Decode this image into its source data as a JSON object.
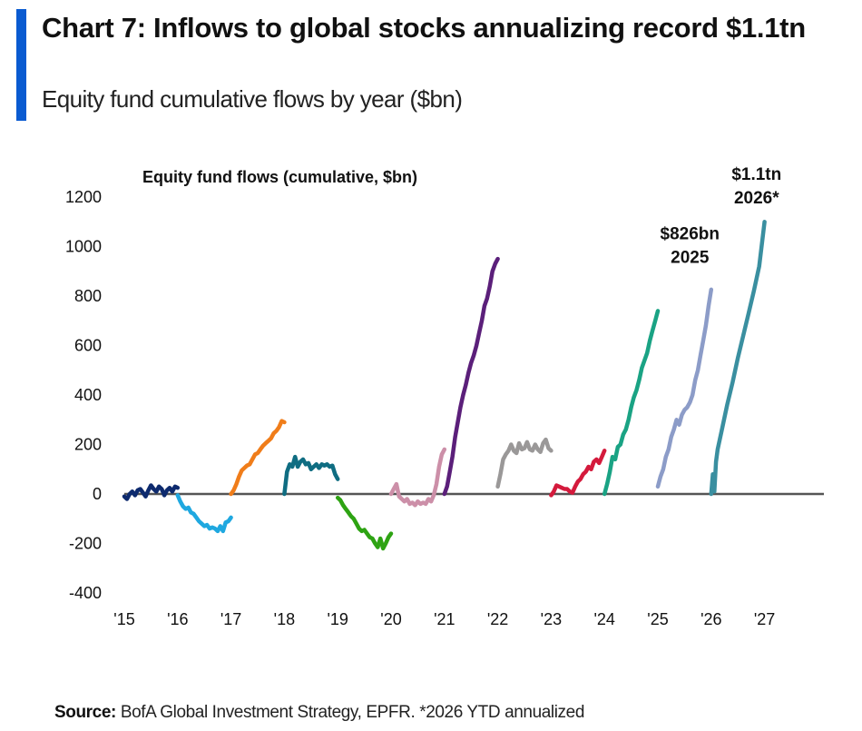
{
  "header": {
    "title": "Chart 7: Inflows to global stocks annualizing record $1.1tn",
    "subtitle": "Equity fund cumulative flows by year ($bn)",
    "accent_color": "#0a5bd1"
  },
  "footer": {
    "source_label": "Source:",
    "source_text": " BofA Global Investment Strategy, EPFR. *2026 YTD annualized"
  },
  "chart_data": {
    "type": "line",
    "title": "Equity fund flows (cumulative, $bn)",
    "xlabel": "",
    "ylabel": "",
    "ylim": [
      -400,
      1200
    ],
    "xlim": [
      2015,
      2027
    ],
    "grid": false,
    "legend": "none",
    "yticks": [
      1200,
      1000,
      800,
      600,
      400,
      200,
      0,
      -200,
      -400
    ],
    "xticks": [
      {
        "value": 2015,
        "label": "'15"
      },
      {
        "value": 2016,
        "label": "'16"
      },
      {
        "value": 2017,
        "label": "'17"
      },
      {
        "value": 2018,
        "label": "'18"
      },
      {
        "value": 2019,
        "label": "'19"
      },
      {
        "value": 2020,
        "label": "'20"
      },
      {
        "value": 2021,
        "label": "'21"
      },
      {
        "value": 2022,
        "label": "'22"
      },
      {
        "value": 2023,
        "label": "'23"
      },
      {
        "value": 2024,
        "label": "'24"
      },
      {
        "value": 2025,
        "label": "'25"
      },
      {
        "value": 2026,
        "label": "'26"
      },
      {
        "value": 2027,
        "label": "'27"
      }
    ],
    "series": [
      {
        "name": "2015",
        "color": "#0d2a6e",
        "x": [
          2015.0,
          2015.05,
          2015.1,
          2015.15,
          2015.2,
          2015.25,
          2015.3,
          2015.35,
          2015.4,
          2015.45,
          2015.5,
          2015.55,
          2015.6,
          2015.65,
          2015.7,
          2015.75,
          2015.8,
          2015.85,
          2015.9,
          2015.95,
          2016.0
        ],
        "y": [
          -10,
          -20,
          0,
          10,
          -5,
          15,
          20,
          5,
          -10,
          15,
          35,
          20,
          10,
          30,
          20,
          -5,
          15,
          25,
          10,
          30,
          25
        ]
      },
      {
        "name": "2016",
        "color": "#1fa8e0",
        "x": [
          2016.0,
          2016.05,
          2016.1,
          2016.15,
          2016.2,
          2016.25,
          2016.3,
          2016.35,
          2016.4,
          2016.45,
          2016.5,
          2016.55,
          2016.6,
          2016.65,
          2016.7,
          2016.75,
          2016.8,
          2016.85,
          2016.9,
          2016.95,
          2017.0
        ],
        "y": [
          -5,
          -30,
          -50,
          -60,
          -55,
          -75,
          -80,
          -95,
          -110,
          -120,
          -130,
          -125,
          -140,
          -135,
          -140,
          -150,
          -130,
          -150,
          -115,
          -110,
          -95
        ]
      },
      {
        "name": "2017",
        "color": "#f07d1a",
        "x": [
          2017.0,
          2017.05,
          2017.1,
          2017.15,
          2017.2,
          2017.25,
          2017.3,
          2017.35,
          2017.4,
          2017.45,
          2017.5,
          2017.55,
          2017.6,
          2017.65,
          2017.7,
          2017.75,
          2017.8,
          2017.85,
          2017.9,
          2017.95,
          2018.0
        ],
        "y": [
          0,
          15,
          40,
          70,
          95,
          105,
          115,
          120,
          140,
          160,
          165,
          180,
          195,
          205,
          215,
          225,
          245,
          255,
          270,
          295,
          290
        ]
      },
      {
        "name": "2018",
        "color": "#0f6d82",
        "x": [
          2018.0,
          2018.05,
          2018.1,
          2018.15,
          2018.2,
          2018.25,
          2018.3,
          2018.35,
          2018.4,
          2018.45,
          2018.5,
          2018.55,
          2018.6,
          2018.65,
          2018.7,
          2018.75,
          2018.8,
          2018.85,
          2018.9,
          2018.95,
          2019.0
        ],
        "y": [
          0,
          90,
          120,
          110,
          150,
          110,
          130,
          140,
          120,
          125,
          100,
          110,
          120,
          105,
          120,
          115,
          120,
          110,
          115,
          80,
          60
        ]
      },
      {
        "name": "2019",
        "color": "#2ea313",
        "x": [
          2019.0,
          2019.05,
          2019.1,
          2019.15,
          2019.2,
          2019.25,
          2019.3,
          2019.35,
          2019.4,
          2019.45,
          2019.5,
          2019.55,
          2019.6,
          2019.65,
          2019.7,
          2019.75,
          2019.8,
          2019.85,
          2019.9,
          2019.95,
          2020.0
        ],
        "y": [
          -15,
          -25,
          -45,
          -60,
          -75,
          -90,
          -100,
          -120,
          -140,
          -150,
          -145,
          -160,
          -175,
          -180,
          -200,
          -215,
          -180,
          -220,
          -200,
          -175,
          -160
        ]
      },
      {
        "name": "2020",
        "color": "#cc8fa8",
        "x": [
          2020.0,
          2020.05,
          2020.1,
          2020.15,
          2020.2,
          2020.25,
          2020.3,
          2020.35,
          2020.4,
          2020.45,
          2020.5,
          2020.55,
          2020.6,
          2020.65,
          2020.7,
          2020.75,
          2020.8,
          2020.85,
          2020.9,
          2020.95,
          2021.0
        ],
        "y": [
          0,
          20,
          40,
          -10,
          -20,
          -30,
          -20,
          -40,
          -35,
          -45,
          -30,
          -40,
          -35,
          -40,
          -20,
          -30,
          -5,
          40,
          110,
          160,
          180
        ]
      },
      {
        "name": "2021",
        "color": "#5b1f7a",
        "x": [
          2021.0,
          2021.05,
          2021.1,
          2021.15,
          2021.2,
          2021.25,
          2021.3,
          2021.35,
          2021.4,
          2021.45,
          2021.5,
          2021.55,
          2021.6,
          2021.65,
          2021.7,
          2021.75,
          2021.8,
          2021.85,
          2021.9,
          2021.95,
          2022.0
        ],
        "y": [
          0,
          30,
          90,
          150,
          230,
          290,
          350,
          400,
          440,
          490,
          530,
          560,
          600,
          650,
          700,
          760,
          790,
          840,
          900,
          930,
          950
        ]
      },
      {
        "name": "2022",
        "color": "#9a9898",
        "x": [
          2022.0,
          2022.05,
          2022.1,
          2022.15,
          2022.2,
          2022.25,
          2022.3,
          2022.35,
          2022.4,
          2022.45,
          2022.5,
          2022.55,
          2022.6,
          2022.65,
          2022.7,
          2022.75,
          2022.8,
          2022.85,
          2022.9,
          2022.95,
          2023.0
        ],
        "y": [
          30,
          80,
          140,
          160,
          175,
          200,
          175,
          165,
          205,
          180,
          185,
          210,
          180,
          175,
          200,
          180,
          170,
          205,
          220,
          185,
          175
        ]
      },
      {
        "name": "2023",
        "color": "#d41a3c",
        "x": [
          2023.0,
          2023.05,
          2023.1,
          2023.15,
          2023.2,
          2023.25,
          2023.3,
          2023.35,
          2023.4,
          2023.45,
          2023.5,
          2023.55,
          2023.6,
          2023.65,
          2023.7,
          2023.75,
          2023.8,
          2023.85,
          2023.9,
          2023.95,
          2024.0
        ],
        "y": [
          -5,
          10,
          35,
          30,
          25,
          20,
          20,
          10,
          5,
          30,
          50,
          60,
          80,
          90,
          110,
          100,
          130,
          140,
          125,
          150,
          175
        ]
      },
      {
        "name": "2024",
        "color": "#1aa384",
        "x": [
          2024.0,
          2024.05,
          2024.1,
          2024.15,
          2024.2,
          2024.25,
          2024.3,
          2024.35,
          2024.4,
          2024.45,
          2024.5,
          2024.55,
          2024.6,
          2024.65,
          2024.7,
          2024.75,
          2024.8,
          2024.85,
          2024.9,
          2024.95,
          2025.0
        ],
        "y": [
          0,
          40,
          90,
          150,
          140,
          190,
          200,
          240,
          260,
          300,
          350,
          390,
          420,
          460,
          510,
          540,
          570,
          620,
          660,
          700,
          740
        ]
      },
      {
        "name": "2025",
        "color": "#8c9cc8",
        "x": [
          2025.0,
          2025.05,
          2025.1,
          2025.15,
          2025.2,
          2025.25,
          2025.3,
          2025.35,
          2025.4,
          2025.45,
          2025.5,
          2025.55,
          2025.6,
          2025.65,
          2025.7,
          2025.75,
          2025.8,
          2025.85,
          2025.9,
          2025.95,
          2026.0
        ],
        "y": [
          30,
          70,
          100,
          150,
          180,
          230,
          260,
          300,
          280,
          320,
          340,
          350,
          370,
          400,
          460,
          500,
          560,
          620,
          680,
          760,
          826
        ]
      },
      {
        "name": "2026",
        "color": "#3a8fa0",
        "x": [
          2026.0,
          2026.03,
          2026.06,
          2026.09,
          2026.12,
          2026.2,
          2026.3,
          2026.4,
          2026.5,
          2026.6,
          2026.7,
          2026.8,
          2026.9,
          2027.0
        ],
        "y": [
          0,
          80,
          10,
          130,
          180,
          260,
          360,
          450,
          550,
          640,
          730,
          820,
          920,
          1100
        ]
      }
    ],
    "annotations": [
      {
        "lines": [
          "$826bn",
          "2025"
        ],
        "x": 2025.6,
        "y": 1030
      },
      {
        "lines": [
          "$1.1tn",
          "2026*"
        ],
        "x": 2026.85,
        "y": 1270
      }
    ]
  }
}
